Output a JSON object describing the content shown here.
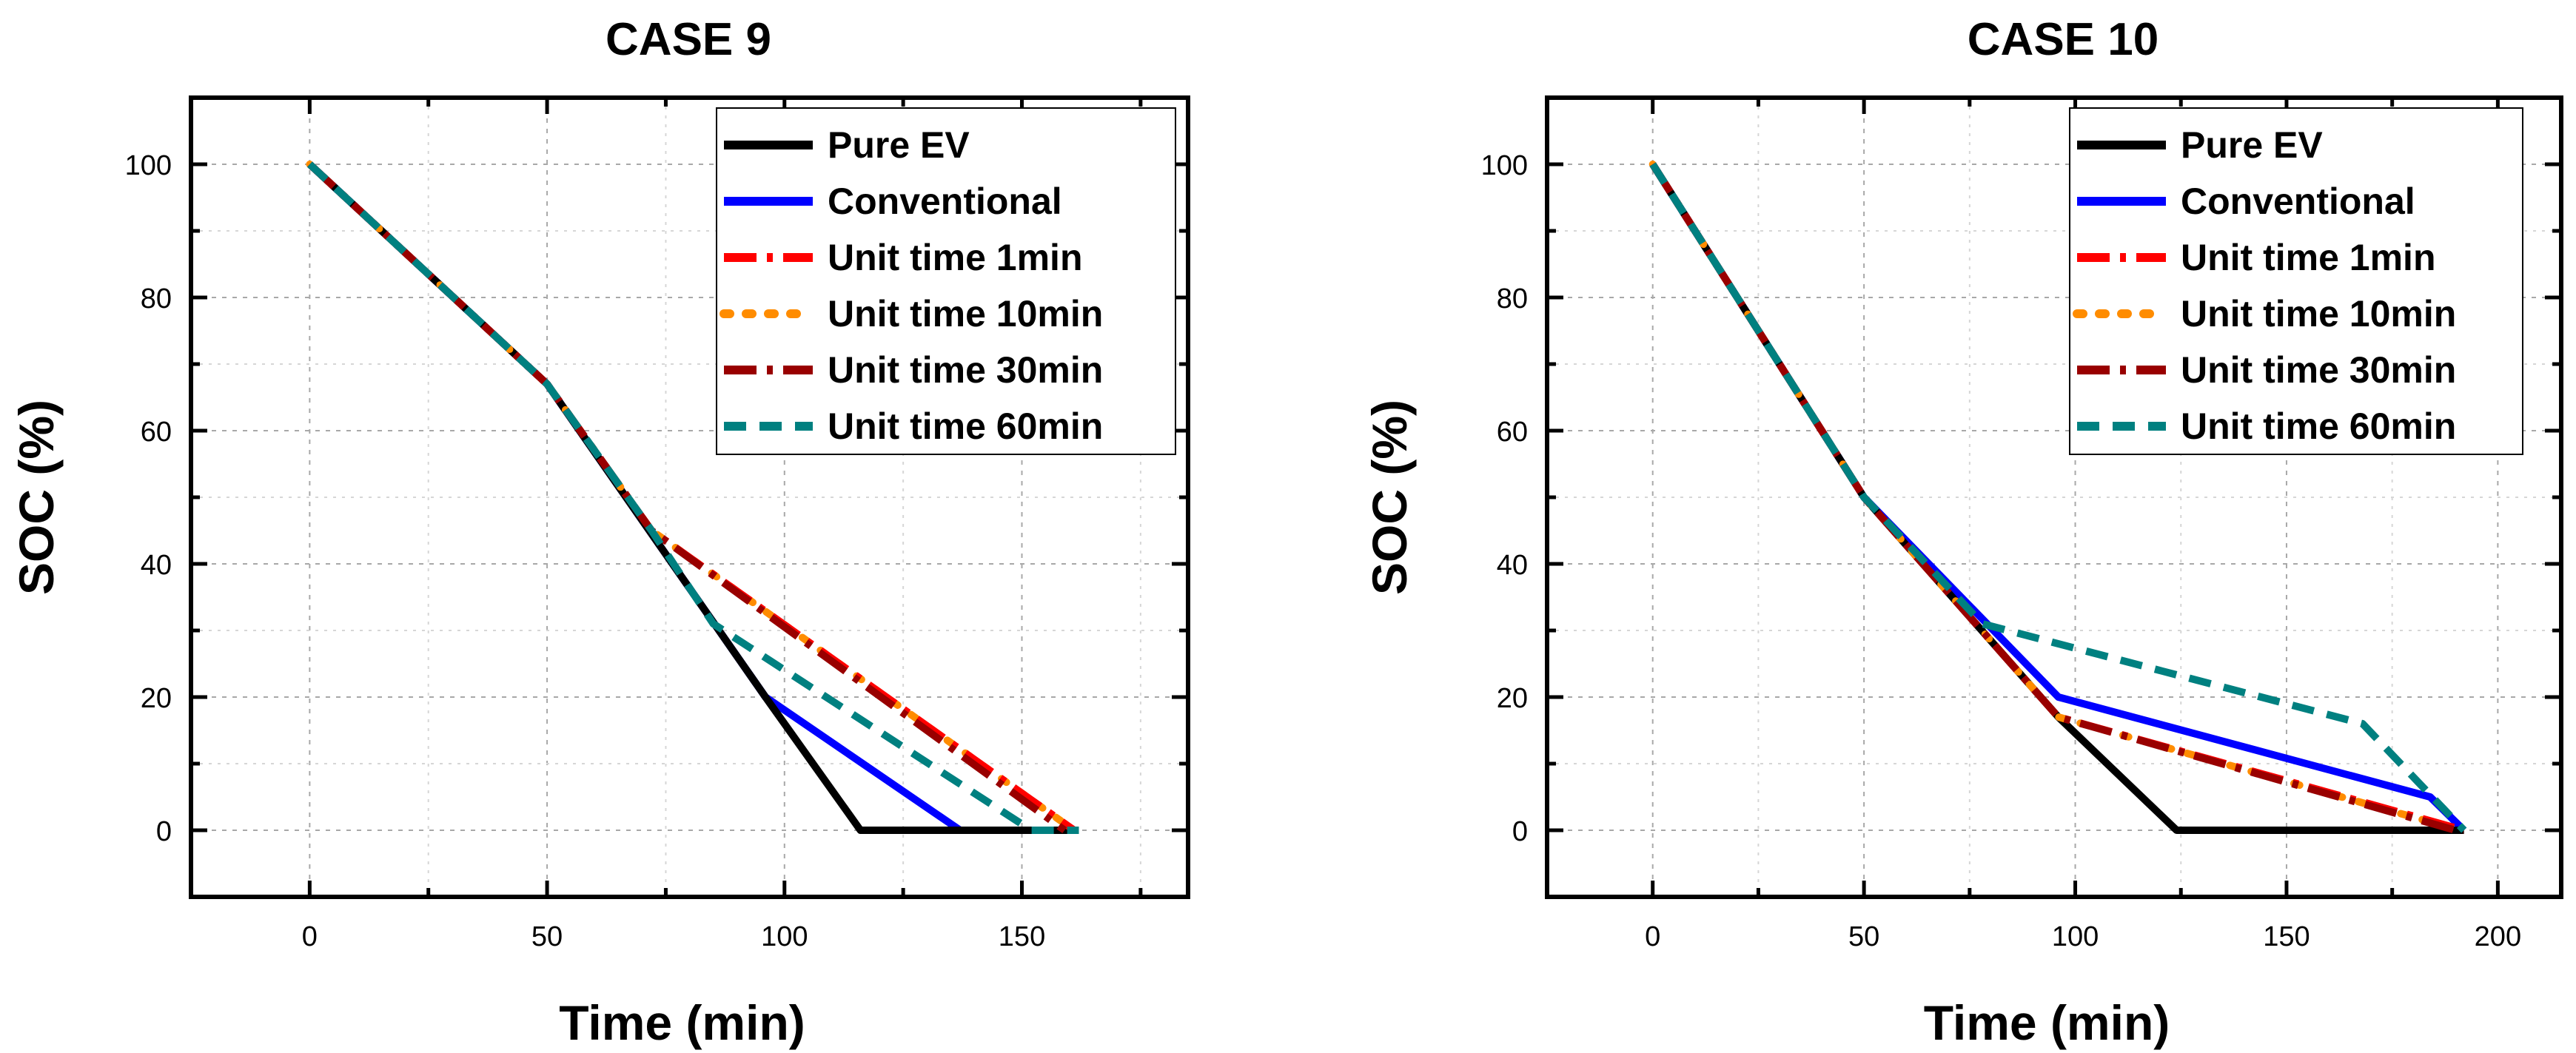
{
  "chart_data": [
    {
      "type": "line",
      "title": "CASE 9",
      "xlabel": "Time (min)",
      "ylabel": "SOC (%)",
      "xlim": [
        -25,
        185
      ],
      "ylim": [
        -10,
        110
      ],
      "xticks": [
        0,
        50,
        100,
        150
      ],
      "yticks": [
        0,
        20,
        40,
        60,
        80,
        100
      ],
      "grid": true,
      "legend_position": "top-right",
      "series": [
        {
          "name": "Conventional",
          "x": [
            0,
            50,
            96,
            137,
            162
          ],
          "y": [
            100,
            67,
            20,
            0,
            0
          ]
        },
        {
          "name": "Pure EV",
          "x": [
            0,
            50,
            96,
            116,
            162
          ],
          "y": [
            100,
            67,
            20,
            0,
            0
          ]
        },
        {
          "name": "Unit time 10min",
          "x": [
            0,
            50,
            72,
            161
          ],
          "y": [
            100,
            67,
            45,
            0
          ]
        },
        {
          "name": "Unit time 1min",
          "x": [
            0,
            50,
            72,
            161
          ],
          "y": [
            100,
            67,
            45,
            0
          ]
        },
        {
          "name": "Unit time 30min",
          "x": [
            0,
            50,
            72,
            159
          ],
          "y": [
            100,
            67,
            45,
            0
          ]
        },
        {
          "name": "Unit time 60min",
          "x": [
            0,
            50,
            72,
            85,
            152,
            162
          ],
          "y": [
            100,
            67,
            45,
            31,
            0,
            0
          ]
        }
      ]
    },
    {
      "type": "line",
      "title": "CASE 10",
      "xlabel": "Time (min)",
      "ylabel": "SOC (%)",
      "xlim": [
        -25,
        215
      ],
      "ylim": [
        -10,
        110
      ],
      "xticks": [
        0,
        50,
        100,
        150,
        200
      ],
      "yticks": [
        0,
        20,
        40,
        60,
        80,
        100
      ],
      "grid": true,
      "legend_position": "top-right",
      "series": [
        {
          "name": "Conventional",
          "x": [
            0,
            50,
            96,
            184,
            192
          ],
          "y": [
            100,
            50,
            20,
            5,
            0
          ]
        },
        {
          "name": "Pure EV",
          "x": [
            0,
            50,
            96,
            124,
            192
          ],
          "y": [
            100,
            50,
            17,
            0,
            0
          ]
        },
        {
          "name": "Unit time 10min",
          "x": [
            0,
            50,
            96,
            191
          ],
          "y": [
            100,
            50,
            17,
            0
          ]
        },
        {
          "name": "Unit time 1min",
          "x": [
            0,
            50,
            96,
            192
          ],
          "y": [
            100,
            50,
            17,
            0
          ]
        },
        {
          "name": "Unit time 30min",
          "x": [
            0,
            50,
            96,
            190
          ],
          "y": [
            100,
            50,
            17,
            0
          ]
        },
        {
          "name": "Unit time 60min",
          "x": [
            0,
            50,
            78,
            168,
            192
          ],
          "y": [
            100,
            50,
            31,
            16,
            0
          ]
        }
      ]
    }
  ],
  "legend": [
    {
      "label": "Pure EV",
      "color": "#000000",
      "dash": "solid"
    },
    {
      "label": "Conventional",
      "color": "#0000ff",
      "dash": "solid"
    },
    {
      "label": "Unit time 1min",
      "color": "#ff0000",
      "dash": "dashdot"
    },
    {
      "label": "Unit time 10min",
      "color": "#ff8c00",
      "dash": "dot"
    },
    {
      "label": "Unit time 30min",
      "color": "#990000",
      "dash": "dashdot"
    },
    {
      "label": "Unit time 60min",
      "color": "#008080",
      "dash": "dash"
    }
  ]
}
